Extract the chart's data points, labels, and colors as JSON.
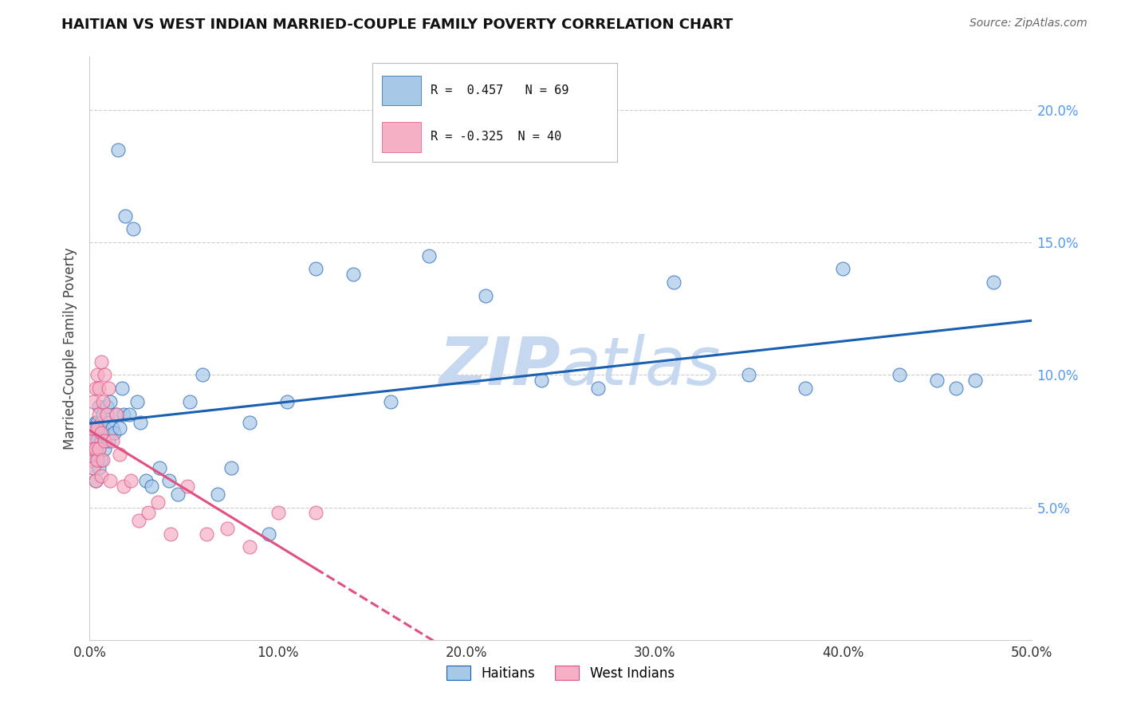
{
  "title": "HAITIAN VS WEST INDIAN MARRIED-COUPLE FAMILY POVERTY CORRELATION CHART",
  "source": "Source: ZipAtlas.com",
  "ylabel_label": "Married-Couple Family Poverty",
  "xlim": [
    0,
    0.5
  ],
  "ylim": [
    0.0,
    0.22
  ],
  "yticks": [
    0.05,
    0.1,
    0.15,
    0.2
  ],
  "ytick_labels": [
    "5.0%",
    "10.0%",
    "15.0%",
    "20.0%"
  ],
  "xticks": [
    0.0,
    0.1,
    0.2,
    0.3,
    0.4,
    0.5
  ],
  "xtick_labels": [
    "0.0%",
    "10.0%",
    "20.0%",
    "30.0%",
    "40.0%",
    "50.0%"
  ],
  "haitians_x": [
    0.001,
    0.001,
    0.001,
    0.002,
    0.002,
    0.002,
    0.002,
    0.003,
    0.003,
    0.003,
    0.003,
    0.004,
    0.004,
    0.004,
    0.005,
    0.005,
    0.005,
    0.005,
    0.006,
    0.006,
    0.006,
    0.007,
    0.007,
    0.008,
    0.008,
    0.009,
    0.01,
    0.01,
    0.011,
    0.012,
    0.013,
    0.014,
    0.015,
    0.016,
    0.017,
    0.018,
    0.019,
    0.021,
    0.023,
    0.025,
    0.027,
    0.03,
    0.033,
    0.037,
    0.042,
    0.047,
    0.053,
    0.06,
    0.068,
    0.075,
    0.085,
    0.095,
    0.105,
    0.12,
    0.14,
    0.16,
    0.18,
    0.21,
    0.24,
    0.27,
    0.31,
    0.35,
    0.38,
    0.4,
    0.43,
    0.45,
    0.46,
    0.47,
    0.48
  ],
  "haitians_y": [
    0.068,
    0.072,
    0.075,
    0.065,
    0.07,
    0.078,
    0.08,
    0.06,
    0.068,
    0.075,
    0.082,
    0.07,
    0.075,
    0.082,
    0.065,
    0.072,
    0.08,
    0.088,
    0.068,
    0.075,
    0.082,
    0.078,
    0.085,
    0.072,
    0.08,
    0.088,
    0.075,
    0.082,
    0.09,
    0.08,
    0.078,
    0.085,
    0.185,
    0.08,
    0.095,
    0.085,
    0.16,
    0.085,
    0.155,
    0.09,
    0.082,
    0.06,
    0.058,
    0.065,
    0.06,
    0.055,
    0.09,
    0.1,
    0.055,
    0.065,
    0.082,
    0.04,
    0.09,
    0.14,
    0.138,
    0.09,
    0.145,
    0.13,
    0.098,
    0.095,
    0.135,
    0.1,
    0.095,
    0.14,
    0.1,
    0.098,
    0.095,
    0.098,
    0.135
  ],
  "west_indians_x": [
    0.001,
    0.001,
    0.001,
    0.002,
    0.002,
    0.002,
    0.003,
    0.003,
    0.003,
    0.004,
    0.004,
    0.004,
    0.005,
    0.005,
    0.005,
    0.006,
    0.006,
    0.006,
    0.007,
    0.007,
    0.008,
    0.008,
    0.009,
    0.01,
    0.011,
    0.012,
    0.014,
    0.016,
    0.018,
    0.022,
    0.026,
    0.031,
    0.036,
    0.043,
    0.052,
    0.062,
    0.073,
    0.085,
    0.1,
    0.12
  ],
  "west_indians_y": [
    0.068,
    0.075,
    0.08,
    0.065,
    0.072,
    0.09,
    0.06,
    0.072,
    0.095,
    0.068,
    0.08,
    0.1,
    0.072,
    0.085,
    0.095,
    0.062,
    0.078,
    0.105,
    0.068,
    0.09,
    0.075,
    0.1,
    0.085,
    0.095,
    0.06,
    0.075,
    0.085,
    0.07,
    0.058,
    0.06,
    0.045,
    0.048,
    0.052,
    0.04,
    0.058,
    0.04,
    0.042,
    0.035,
    0.048,
    0.048
  ],
  "R_haitians": 0.457,
  "N_haitians": 69,
  "R_west_indians": -0.325,
  "N_west_indians": 40,
  "color_haitians": "#a8c8e8",
  "color_west_indians": "#f5b0c5",
  "line_color_haitians": "#1a60b0",
  "line_color_west_indians": "#e05080",
  "watermark_color": "#c5d8ef",
  "background_color": "#ffffff",
  "grid_color": "#cccccc"
}
